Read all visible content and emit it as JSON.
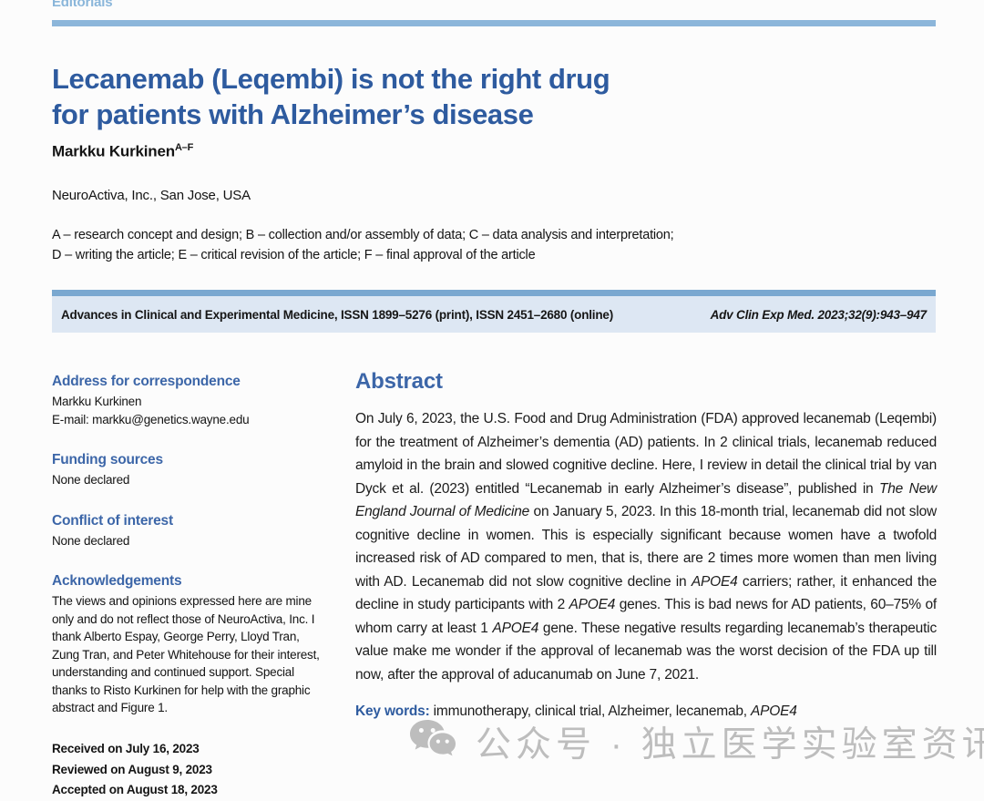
{
  "page": {
    "section_label": "Editorials"
  },
  "header": {
    "title_line1": "Lecanemab (Leqembi) is not the right drug",
    "title_line2": "for patients with Alzheimer’s disease",
    "author": "Markku Kurkinen",
    "author_superscript": "A–F",
    "affiliation": "NeuroActiva, Inc., San Jose, USA",
    "contributions_line1": "A – research concept and design; B – collection and/or assembly of data; C – data analysis and interpretation;",
    "contributions_line2": "D – writing the article; E – critical revision of the article; F – final approval of the article"
  },
  "journal_bar": {
    "left": "Advances in Clinical and Experimental Medicine, ISSN 1899–5276 (print), ISSN 2451–2680 (online)",
    "right": "Adv Clin Exp Med. 2023;32(9):943–947"
  },
  "sidebar": {
    "correspondence": {
      "heading": "Address for correspondence",
      "line1": "Markku Kurkinen",
      "line2": "E-mail: markku@genetics.wayne.edu"
    },
    "funding": {
      "heading": "Funding sources",
      "body": "None declared"
    },
    "conflict": {
      "heading": "Conflict of interest",
      "body": "None declared"
    },
    "acknowledgements": {
      "heading": "Acknowledgements",
      "body": "The views and opinions expressed here are mine only and do not reflect those of NeuroActiva, Inc. I thank Alberto Espay, George Perry, Lloyd Tran, Zung Tran, and Peter Whitehouse for their interest, understanding and continued support. Special thanks to Risto Kurkinen for help with the graphic abstract and Figure 1."
    },
    "dates": {
      "received": "Received on July 16, 2023",
      "reviewed": "Reviewed on August 9, 2023",
      "accepted": "Accepted on August 18, 2023"
    }
  },
  "abstract": {
    "heading": "Abstract",
    "paragraph": [
      {
        "t": "On July 6, 2023, the U.S. Food and Drug Administration (FDA) approved lecanemab (Leqembi) for the treatment of Alzheimer’s dementia (AD) patients. In 2 clinical trials, lecanemab reduced amyloid in the brain and slowed cognitive decline. Here, I review in detail the clinical trial by van Dyck et al. (2023) entitled “Lecanemab in early Alzheimer’s disease”, published in "
      },
      {
        "t": "The New England Journal of Medicine",
        "i": true
      },
      {
        "t": " on January 5, 2023. In this 18-month trial, lecanemab did not slow cognitive decline in women. This is especially significant because women have a twofold increased risk of AD compared to men, that is, there are 2 times more women than men living with AD. Lecanemab did not slow cognitive decline in "
      },
      {
        "t": "APOE4",
        "i": true
      },
      {
        "t": " carriers; rather, it enhanced the decline in study participants with 2 "
      },
      {
        "t": "APOE4",
        "i": true
      },
      {
        "t": " genes. This is bad news for AD patients, 60–75% of whom carry at least 1 "
      },
      {
        "t": "APOE4",
        "i": true
      },
      {
        "t": " gene. These negative results regarding lecanemab’s therapeutic value make me wonder if the approval of lecanemab was the worst decision of the FDA up till now, after the approval of aducanumab on June 7, 2021."
      }
    ],
    "keywords_label": "Key words:",
    "keywords": [
      {
        "t": " immunotherapy, clinical trial, Alzheimer, lecanemab, "
      },
      {
        "t": "APOE4",
        "i": true
      }
    ]
  },
  "watermark": {
    "icon": "wechat-icon",
    "text": "公众号 · 独立医学实验室资讯"
  },
  "colors": {
    "title_blue": "#2e5b9f",
    "heading_blue": "#3c66a8",
    "light_blue": "#8cb6da",
    "bar_background": "#dde7f3",
    "bar_border": "#7aa8d0",
    "watermark_gray": "#bdbdbd"
  }
}
